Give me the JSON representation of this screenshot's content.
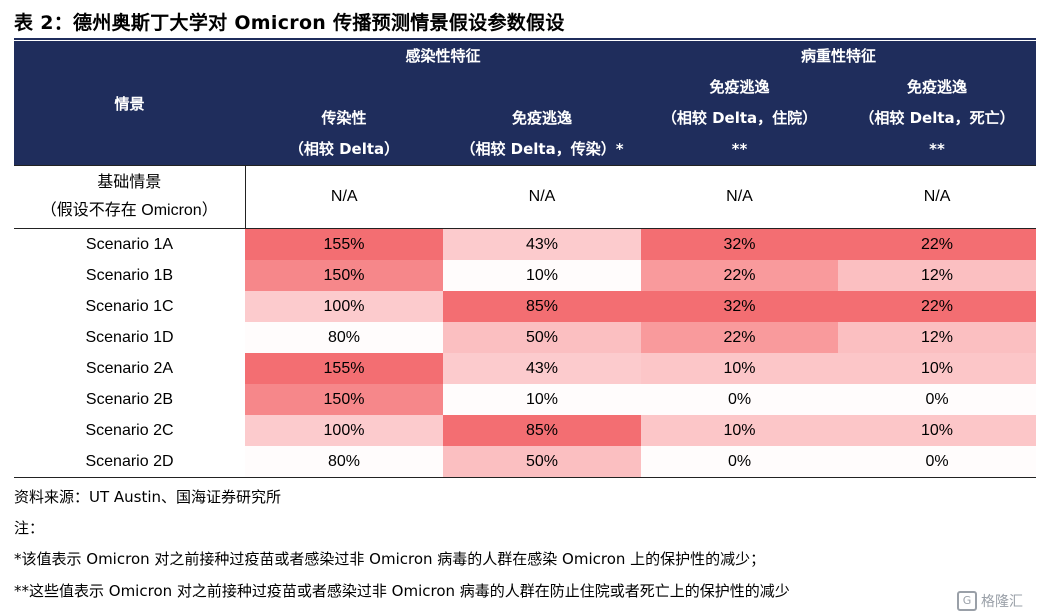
{
  "title": "表 2：德州奥斯丁大学对 Omicron 传播预测情景假设参数假设",
  "headers": {
    "scenario_col": "情景",
    "group1": "感染性特征",
    "group2": "病重性特征",
    "col1": [
      "传染性",
      "（相较 Delta）"
    ],
    "col2": [
      "免疫逃逸",
      "（相较 Delta，传染）*"
    ],
    "col3": [
      "免疫逃逸",
      "（相较 Delta，住院）",
      "**"
    ],
    "col4": [
      "免疫逃逸",
      "（相较 Delta，死亡）",
      "**"
    ]
  },
  "base_row": {
    "label": [
      "基础情景",
      "（假设不存在 Omicron）"
    ],
    "values": [
      "N/A",
      "N/A",
      "N/A",
      "N/A"
    ]
  },
  "rows": [
    {
      "name": "Scenario 1A",
      "values": [
        "155%",
        "43%",
        "32%",
        "22%"
      ],
      "colors": [
        "#f36e72",
        "#fccbcd",
        "#f36e72",
        "#f36e72"
      ]
    },
    {
      "name": "Scenario 1B",
      "values": [
        "150%",
        "10%",
        "22%",
        "12%"
      ],
      "colors": [
        "#f6878a",
        "#fffcfc",
        "#f99a9c",
        "#fbbfc1"
      ]
    },
    {
      "name": "Scenario 1C",
      "values": [
        "100%",
        "85%",
        "32%",
        "22%"
      ],
      "colors": [
        "#fccbcd",
        "#f36e72",
        "#f36e72",
        "#f36e72"
      ]
    },
    {
      "name": "Scenario 1D",
      "values": [
        "80%",
        "50%",
        "22%",
        "12%"
      ],
      "colors": [
        "#fffcfc",
        "#fbbfc1",
        "#f99a9c",
        "#fbbfc1"
      ]
    },
    {
      "name": "Scenario 2A",
      "values": [
        "155%",
        "43%",
        "10%",
        "10%"
      ],
      "colors": [
        "#f36e72",
        "#fccbcd",
        "#fcc6c8",
        "#fcc6c8"
      ]
    },
    {
      "name": "Scenario 2B",
      "values": [
        "150%",
        "10%",
        "0%",
        "0%"
      ],
      "colors": [
        "#f6878a",
        "#fffcfc",
        "#fffcfc",
        "#fffcfc"
      ]
    },
    {
      "name": "Scenario 2C",
      "values": [
        "100%",
        "85%",
        "10%",
        "10%"
      ],
      "colors": [
        "#fccbcd",
        "#f36e72",
        "#fcc6c8",
        "#fcc6c8"
      ]
    },
    {
      "name": "Scenario 2D",
      "values": [
        "80%",
        "50%",
        "0%",
        "0%"
      ],
      "colors": [
        "#fffcfc",
        "#fbbfc1",
        "#fffcfc",
        "#fffcfc"
      ]
    }
  ],
  "source": "资料来源：UT Austin、国海证券研究所",
  "notes_label": "注：",
  "note1": "*该值表示 Omicron 对之前接种过疫苗或者感染过非 Omicron 病毒的人群在感染 Omicron 上的保护性的减少；",
  "note2": "**这些值表示 Omicron 对之前接种过疫苗或者感染过非 Omicron 病毒的人群在防止住院或者死亡上的保护性的减少",
  "watermark": "格隆汇",
  "colors": {
    "header_bg": "#1f2d5c"
  }
}
